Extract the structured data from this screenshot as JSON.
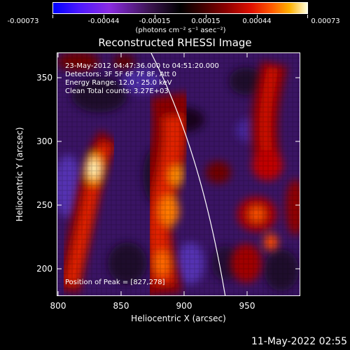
{
  "colorbar": {
    "tick_labels": [
      "-0.00073",
      "-0.00044",
      "-0.00015",
      "0.00015",
      "0.00044",
      "0.00073"
    ],
    "units": "(photons cm⁻² s⁻¹ asec⁻²)"
  },
  "title": "Reconstructed RHESSI Image",
  "info": {
    "time_range": "23-May-2012 04:47:36.000 to 04:51:20.000",
    "detectors": "Detectors: 3F 5F 6F 7F 8F, Att 0",
    "energy_range": "Energy Range: 12.0 - 25.0 keV",
    "clean": "Clean     Total counts: 3.27E+03",
    "peak": "Position of Peak = [827,278]"
  },
  "axes": {
    "xlabel": "Heliocentric X (arcsec)",
    "ylabel": "Heliocentric Y (arcsec)",
    "xticks": [
      "800",
      "850",
      "900",
      "950"
    ],
    "yticks": [
      "350",
      "300",
      "250",
      "200"
    ]
  },
  "footer": "11-May-2022 02:55",
  "colors": {
    "background": "#000000",
    "foreground": "#ffffff"
  }
}
